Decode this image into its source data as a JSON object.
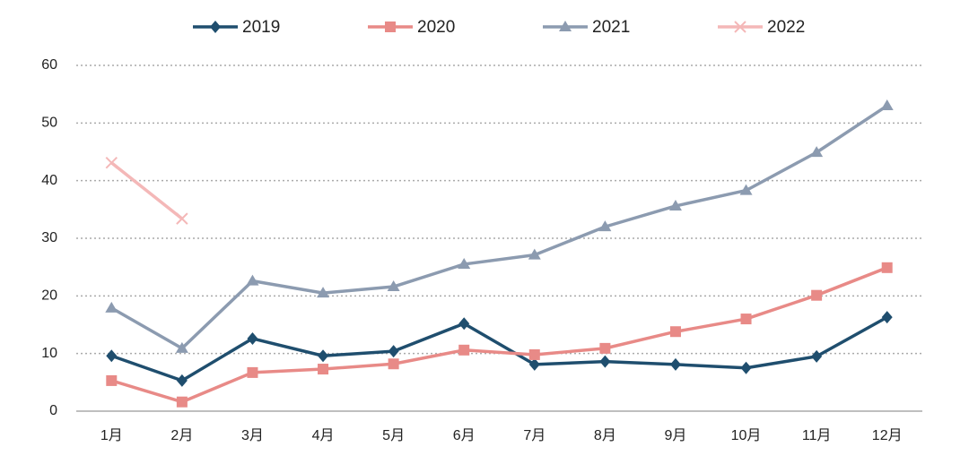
{
  "chart_data": {
    "type": "line",
    "categories": [
      "1月",
      "2月",
      "3月",
      "4月",
      "5月",
      "6月",
      "7月",
      "8月",
      "9月",
      "10月",
      "11月",
      "12月"
    ],
    "series": [
      {
        "name": "2019",
        "color": "#1f4e6e",
        "marker": "diamond",
        "values": [
          9.6,
          5.3,
          12.6,
          9.6,
          10.4,
          15.2,
          8.1,
          8.6,
          8.1,
          7.5,
          9.5,
          16.3
        ]
      },
      {
        "name": "2020",
        "color": "#e88a87",
        "marker": "square",
        "values": [
          5.3,
          1.6,
          6.7,
          7.3,
          8.2,
          10.6,
          9.8,
          10.9,
          13.8,
          16.0,
          20.1,
          24.9
        ]
      },
      {
        "name": "2021",
        "color": "#8c9bb0",
        "marker": "triangle",
        "values": [
          17.9,
          10.9,
          22.6,
          20.5,
          21.6,
          25.5,
          27.1,
          32.0,
          35.6,
          38.3,
          44.9,
          53.0
        ]
      },
      {
        "name": "2022",
        "color": "#f4b8b8",
        "marker": "x",
        "values": [
          43.1,
          33.4,
          null,
          null,
          null,
          null,
          null,
          null,
          null,
          null,
          null,
          null
        ]
      }
    ],
    "ylim": [
      0,
      60
    ],
    "yticks": [
      0,
      10,
      20,
      30,
      40,
      50,
      60
    ],
    "grid": true,
    "legend": "top"
  }
}
